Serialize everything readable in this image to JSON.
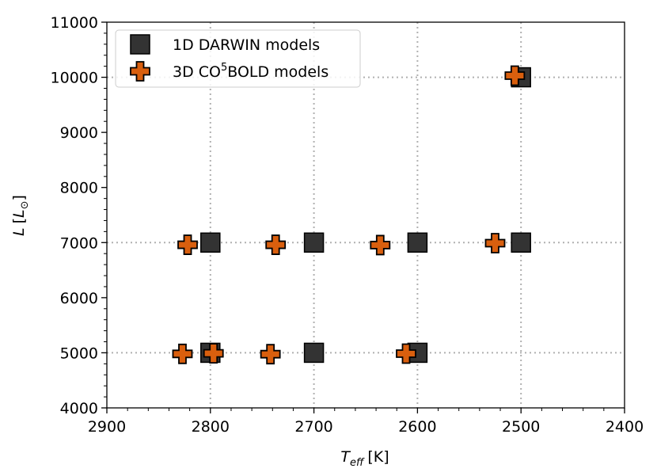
{
  "chart_data": {
    "type": "scatter",
    "title": "",
    "xlabel": {
      "main": "T",
      "sub": "eff",
      "unit": "[K]"
    },
    "ylabel": {
      "main": "L",
      "unit_prefix": "[",
      "unit_main": "L",
      "unit_sub": "⊙",
      "unit_suffix": "]"
    },
    "xlim": [
      2900,
      2400
    ],
    "ylim": [
      4000,
      11000
    ],
    "x_inverted": true,
    "xticks": [
      2900,
      2800,
      2700,
      2600,
      2500,
      2400
    ],
    "xtick_labels": [
      "2900",
      "2800",
      "2700",
      "2600",
      "2500",
      "2400"
    ],
    "yticks": [
      4000,
      5000,
      6000,
      7000,
      8000,
      9000,
      10000,
      11000
    ],
    "ytick_labels": [
      "4000",
      "5000",
      "6000",
      "7000",
      "8000",
      "9000",
      "10000",
      "11000"
    ],
    "grid_x": [
      2800,
      2700,
      2600,
      2500
    ],
    "grid_y": [
      5000,
      7000,
      10000
    ],
    "legend_position": "top-left",
    "series": [
      {
        "name": "1D DARWIN models",
        "label_parts": [
          "1D DARWIN models"
        ],
        "marker": "square",
        "color": "#333333",
        "edge": "#000000",
        "points": [
          {
            "x": 2800,
            "y": 5000
          },
          {
            "x": 2700,
            "y": 5000
          },
          {
            "x": 2600,
            "y": 5000
          },
          {
            "x": 2800,
            "y": 7000
          },
          {
            "x": 2700,
            "y": 7000
          },
          {
            "x": 2600,
            "y": 7000
          },
          {
            "x": 2500,
            "y": 7000
          },
          {
            "x": 2500,
            "y": 10000
          }
        ]
      },
      {
        "name": "3D CO5BOLD models",
        "label_parts": [
          "3D CO",
          "5",
          "BOLD models"
        ],
        "marker": "plus",
        "color": "#d95f0e",
        "edge": "#000000",
        "points": [
          {
            "x": 2827,
            "y": 4980
          },
          {
            "x": 2797,
            "y": 4990
          },
          {
            "x": 2742,
            "y": 4975
          },
          {
            "x": 2611,
            "y": 4985
          },
          {
            "x": 2822,
            "y": 6960
          },
          {
            "x": 2737,
            "y": 6960
          },
          {
            "x": 2636,
            "y": 6955
          },
          {
            "x": 2525,
            "y": 6990
          },
          {
            "x": 2506,
            "y": 10030
          }
        ]
      }
    ]
  }
}
